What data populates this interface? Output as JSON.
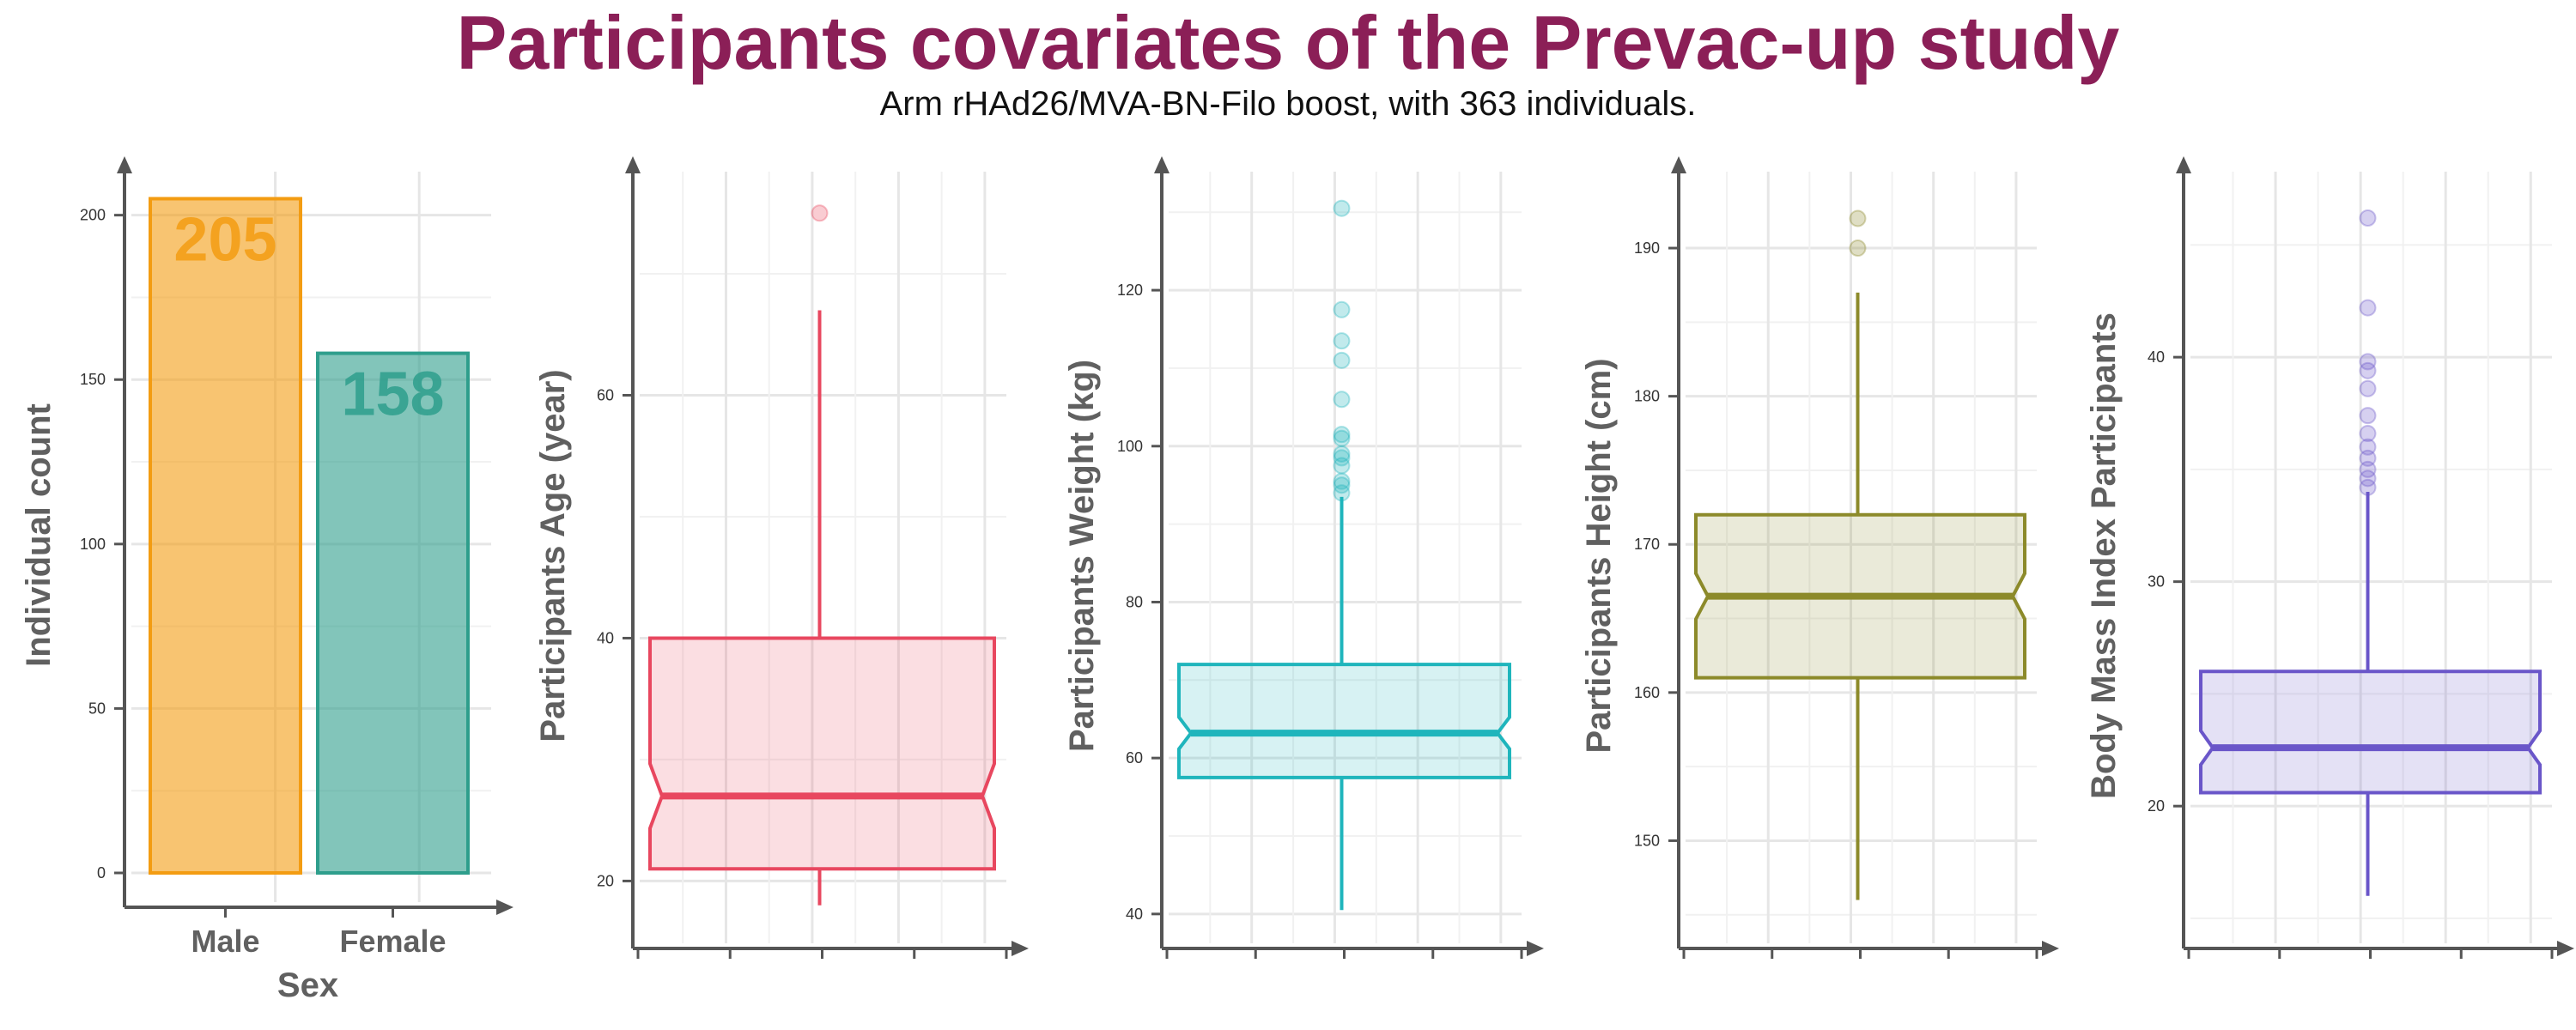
{
  "title": "Participants covariates of the Prevac-up study",
  "subtitle": "Arm rHAd26/MVA-BN-Filo boost, with 363 individuals.",
  "chart_data": [
    {
      "type": "bar",
      "categories": [
        "Male",
        "Female"
      ],
      "values": [
        205,
        158
      ],
      "data_labels": [
        "205",
        "158"
      ],
      "colors": [
        "#F39C12",
        "#2E9E8C"
      ],
      "xlabel": "Sex",
      "ylabel": "Individual count",
      "ylim": [
        0,
        208
      ],
      "yticks": [
        0,
        50,
        100,
        150,
        200
      ],
      "grid": true
    },
    {
      "type": "box",
      "notched": true,
      "ylabel": "Participants Age (year)",
      "color": "#E8475F",
      "box": {
        "whisker_low": 18,
        "q1": 21,
        "median": 27,
        "q3": 40,
        "whisker_high": 67
      },
      "outliers": [
        75
      ],
      "ylim": [
        16,
        77
      ],
      "yticks": [
        20,
        40,
        60
      ],
      "grid": true
    },
    {
      "type": "box",
      "notched": true,
      "ylabel": "Participants Weight (kg)",
      "color": "#1FB5BC",
      "box": {
        "whisker_low": 40.5,
        "q1": 57.5,
        "median": 63.2,
        "q3": 72,
        "whisker_high": 93.5
      },
      "outliers": [
        94,
        95,
        95.5,
        97.5,
        98.5,
        99,
        101,
        101.5,
        106,
        111,
        113.5,
        117.5,
        130.5
      ],
      "ylim": [
        38,
        133
      ],
      "yticks": [
        40,
        60,
        80,
        100,
        120
      ],
      "grid": true
    },
    {
      "type": "box",
      "notched": true,
      "ylabel": "Participants Height (cm)",
      "color": "#8C8A2A",
      "box": {
        "whisker_low": 146,
        "q1": 161,
        "median": 166.5,
        "q3": 172,
        "whisker_high": 187
      },
      "outliers": [
        190,
        192
      ],
      "ylim": [
        144,
        194
      ],
      "yticks": [
        150,
        160,
        170,
        180,
        190
      ],
      "grid": true
    },
    {
      "type": "box",
      "notched": true,
      "ylabel": "Body Mass Index Participants",
      "color": "#6A56C9",
      "box": {
        "whisker_low": 16,
        "q1": 20.6,
        "median": 22.6,
        "q3": 26,
        "whisker_high": 34
      },
      "outliers": [
        34.2,
        34.6,
        35,
        35.5,
        36,
        36.6,
        37.4,
        38.6,
        39.4,
        39.8,
        42.2,
        46.2
      ],
      "ylim": [
        14.5,
        47.5
      ],
      "yticks": [
        20,
        30,
        40
      ],
      "grid": true
    }
  ]
}
